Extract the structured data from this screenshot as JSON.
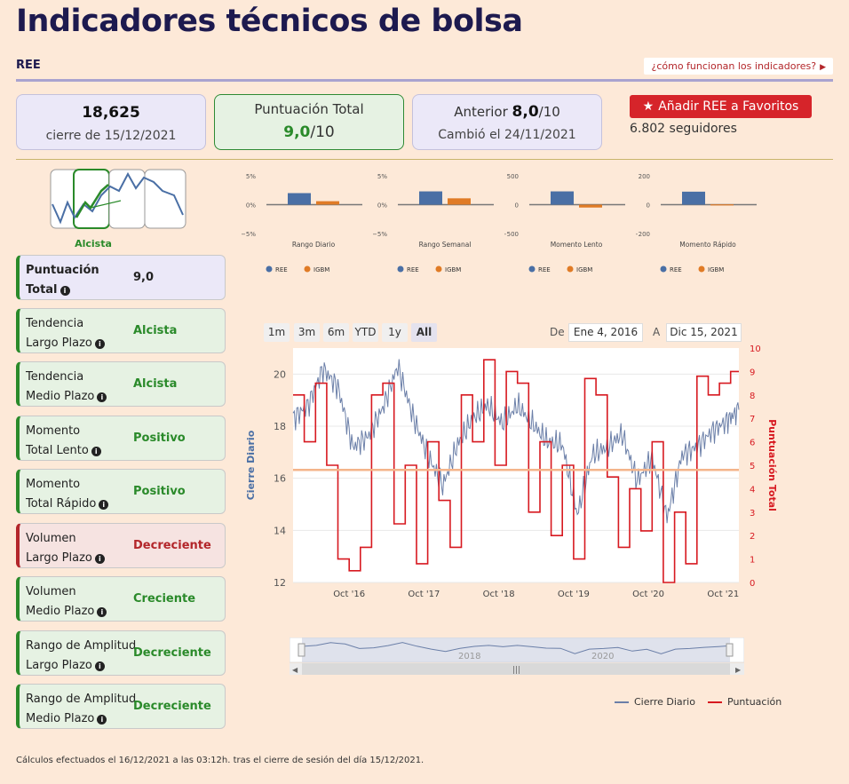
{
  "page": {
    "title": "Indicadores técnicos de bolsa",
    "ticker": "REE",
    "how_link": "¿cómo funcionan los indicadores?"
  },
  "cards": {
    "price": {
      "value": "18,625",
      "sub": "cierre de 15/12/2021"
    },
    "total": {
      "label": "Puntuación Total",
      "score": "9,0",
      "scale": "/10"
    },
    "previous": {
      "label": "Anterior",
      "score": "8,0",
      "scale": "/10",
      "sub": "Cambió el 24/11/2021"
    }
  },
  "favorites": {
    "button_label": "Añadir REE a Favoritos",
    "followers": "6.802 seguidores",
    "icon": "star-icon"
  },
  "trend_badge": {
    "label": "Alcista"
  },
  "indicators": [
    {
      "name_line1": "Puntuación",
      "name_line2": "Total",
      "value": "9,0",
      "status": "total"
    },
    {
      "name_line1": "Tendencia",
      "name_line2": "Largo Plazo",
      "value": "Alcista",
      "status": "good"
    },
    {
      "name_line1": "Tendencia",
      "name_line2": "Medio Plazo",
      "value": "Alcista",
      "status": "good"
    },
    {
      "name_line1": "Momento",
      "name_line2": "Total Lento",
      "value": "Positivo",
      "status": "good"
    },
    {
      "name_line1": "Momento",
      "name_line2": "Total Rápido",
      "value": "Positivo",
      "status": "good"
    },
    {
      "name_line1": "Volumen",
      "name_line2": "Largo Plazo",
      "value": "Decreciente",
      "status": "bad"
    },
    {
      "name_line1": "Volumen",
      "name_line2": "Medio Plazo",
      "value": "Creciente",
      "status": "good"
    },
    {
      "name_line1": "Rango de Amplitud",
      "name_line2": "Largo Plazo",
      "value": "Decreciente",
      "status": "good"
    },
    {
      "name_line1": "Rango de Amplitud",
      "name_line2": "Medio Plazo",
      "value": "Decreciente",
      "status": "good"
    }
  ],
  "colors": {
    "ree": "#4a6fa5",
    "igbm": "#e07b26",
    "puntuacion": "#d71920",
    "good": "#2a8a2a",
    "bad": "#b3262a",
    "accent": "#d6242a"
  },
  "range_selector": {
    "buttons": [
      "1m",
      "3m",
      "6m",
      "YTD",
      "1y",
      "All"
    ],
    "active": "All",
    "from_label": "De",
    "from": "Ene 4, 2016",
    "to_label": "A",
    "to": "Dic 15, 2021"
  },
  "chart_data": [
    {
      "type": "bar",
      "xlabel": "Rango Diario",
      "yticks": [
        "5%",
        "0%",
        "−5%"
      ],
      "ylim": [
        -5,
        5
      ],
      "series": [
        {
          "name": "REE",
          "values": [
            2.0
          ]
        },
        {
          "name": "IGBM",
          "values": [
            0.6
          ]
        }
      ]
    },
    {
      "type": "bar",
      "xlabel": "Rango Semanal",
      "yticks": [
        "5%",
        "0%",
        "−5%"
      ],
      "ylim": [
        -5,
        5
      ],
      "series": [
        {
          "name": "REE",
          "values": [
            2.3
          ]
        },
        {
          "name": "IGBM",
          "values": [
            1.1
          ]
        }
      ]
    },
    {
      "type": "bar",
      "xlabel": "Momento Lento",
      "yticks": [
        "500",
        "0",
        "−500"
      ],
      "ylim": [
        -500,
        500
      ],
      "series": [
        {
          "name": "REE",
          "values": [
            230
          ]
        },
        {
          "name": "IGBM",
          "values": [
            -50
          ]
        }
      ]
    },
    {
      "type": "bar",
      "xlabel": "Momento Rápido",
      "yticks": [
        "200",
        "0",
        "−200"
      ],
      "ylim": [
        -200,
        200
      ],
      "series": [
        {
          "name": "REE",
          "values": [
            90
          ]
        },
        {
          "name": "IGBM",
          "values": [
            2
          ]
        }
      ]
    },
    {
      "type": "line",
      "ylabel": "Cierre Diario",
      "y2label": "Puntuación Total",
      "ylim": [
        12,
        21
      ],
      "y2lim": [
        0,
        10
      ],
      "yticks": [
        "12",
        "14",
        "16",
        "18",
        "20"
      ],
      "y2ticks": [
        "0",
        "1",
        "2",
        "3",
        "4",
        "5",
        "6",
        "7",
        "8",
        "9",
        "10"
      ],
      "xticks": [
        "Oct '16",
        "Oct '17",
        "Oct '18",
        "Oct '19",
        "Oct '20",
        "Oct '21"
      ],
      "reference_line_y2": 4.8,
      "series": [
        {
          "name": "Cierre Diario",
          "x": [
            2016.0,
            2016.2,
            2016.4,
            2016.6,
            2016.8,
            2017.0,
            2017.2,
            2017.4,
            2017.6,
            2017.8,
            2018.0,
            2018.2,
            2018.4,
            2018.6,
            2018.8,
            2019.0,
            2019.2,
            2019.4,
            2019.6,
            2019.8,
            2020.0,
            2020.2,
            2020.4,
            2020.6,
            2020.8,
            2021.0,
            2021.2,
            2021.4,
            2021.6,
            2021.8,
            2021.96
          ],
          "values": [
            18.3,
            18.8,
            20.2,
            19.5,
            17.2,
            17.6,
            18.7,
            20.3,
            18.4,
            16.9,
            15.7,
            17.3,
            18.3,
            18.8,
            18.1,
            18.8,
            18.1,
            17.4,
            17.3,
            14.6,
            16.9,
            17.2,
            17.7,
            15.9,
            16.8,
            14.5,
            16.9,
            17.2,
            17.8,
            18.2,
            18.63
          ]
        },
        {
          "name": "Puntuación",
          "x": [
            2016.0,
            2016.15,
            2016.3,
            2016.45,
            2016.6,
            2016.75,
            2016.9,
            2017.05,
            2017.2,
            2017.35,
            2017.5,
            2017.65,
            2017.8,
            2017.95,
            2018.1,
            2018.25,
            2018.4,
            2018.55,
            2018.7,
            2018.85,
            2019.0,
            2019.15,
            2019.3,
            2019.45,
            2019.6,
            2019.75,
            2019.9,
            2020.05,
            2020.2,
            2020.35,
            2020.5,
            2020.65,
            2020.8,
            2020.95,
            2021.1,
            2021.25,
            2021.4,
            2021.55,
            2021.7,
            2021.85,
            2021.96
          ],
          "values": [
            8,
            6,
            8.5,
            5,
            1,
            0.5,
            1.5,
            8,
            8.5,
            2.5,
            5,
            0.8,
            6,
            3.5,
            1.5,
            8,
            6,
            9.5,
            5,
            9,
            8.5,
            3,
            6,
            2,
            5,
            1,
            8.7,
            8,
            4.5,
            1.5,
            4,
            2.2,
            6,
            0,
            3,
            0.8,
            8.8,
            8,
            8.5,
            9,
            9
          ]
        }
      ]
    }
  ],
  "legend": {
    "series1": "Cierre Diario",
    "series2": "Puntuación"
  },
  "navigator": {
    "labels": [
      "2018",
      "2020"
    ]
  },
  "footer": {
    "text": "Cálculos efectuados el 16/12/2021 a las 03:12h. tras el cierre de sesión del día 15/12/2021."
  }
}
